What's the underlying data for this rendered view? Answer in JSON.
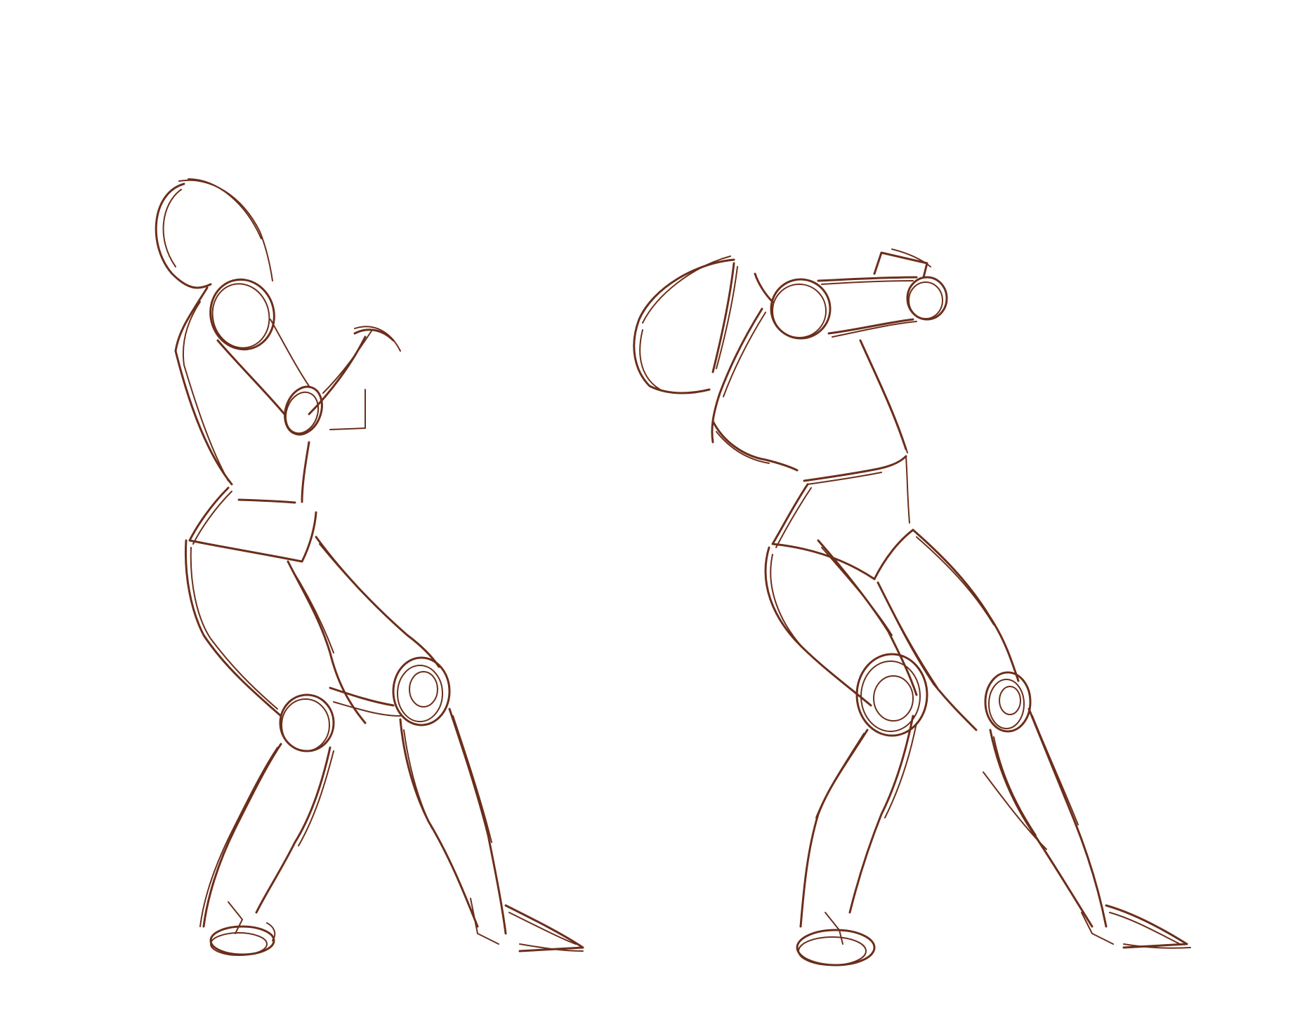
{
  "drawing": {
    "background_color": "#ffffff",
    "ink_color": "#6b2e1a",
    "figures": [
      "gesture-figure-left",
      "gesture-figure-right"
    ]
  }
}
